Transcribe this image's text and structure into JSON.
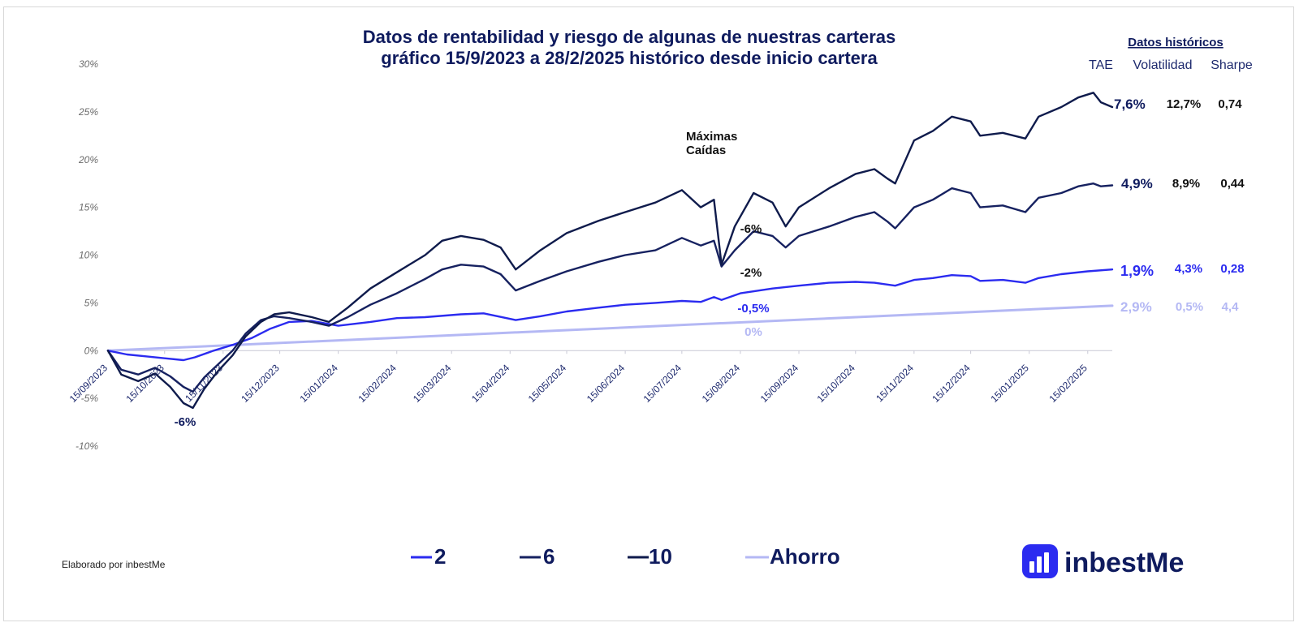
{
  "chart_data": {
    "type": "line",
    "title": [
      "Datos de rentabilidad y riesgo de algunas de nuestras carteras",
      "gráfico 15/9/2023 a 28/2/2025 histórico desde inicio cartera"
    ],
    "xlabel": "",
    "ylabel": "",
    "x_ticks": [
      "15/09/2023",
      "15/10/2023",
      "15/11/2023",
      "15/12/2023",
      "15/01/2024",
      "15/02/2024",
      "15/03/2024",
      "15/04/2024",
      "15/05/2024",
      "15/06/2024",
      "15/07/2024",
      "15/08/2024",
      "15/09/2024",
      "15/10/2024",
      "15/11/2024",
      "15/12/2024",
      "15/01/2025",
      "15/02/2025"
    ],
    "x_range": [
      "2023-09-15",
      "2025-02-28"
    ],
    "y_ticks": [
      "30%",
      "25%",
      "20%",
      "15%",
      "10%",
      "5%",
      "0%",
      "-5%",
      "-10%"
    ],
    "ylim": [
      -10,
      30
    ],
    "series": [
      {
        "name": "10",
        "color": "#0f1b4c",
        "points": [
          [
            "2023-09-15",
            0
          ],
          [
            "2023-09-22",
            -2.5
          ],
          [
            "2023-10-01",
            -3.2
          ],
          [
            "2023-10-10",
            -2.4
          ],
          [
            "2023-10-18",
            -3.8
          ],
          [
            "2023-10-25",
            -5.5
          ],
          [
            "2023-10-30",
            -6
          ],
          [
            "2023-11-05",
            -4
          ],
          [
            "2023-11-12",
            -2.2
          ],
          [
            "2023-11-20",
            -0.5
          ],
          [
            "2023-11-27",
            1.5
          ],
          [
            "2023-12-05",
            3
          ],
          [
            "2023-12-12",
            3.8
          ],
          [
            "2023-12-20",
            4
          ],
          [
            "2024-01-01",
            3.5
          ],
          [
            "2024-01-10",
            3
          ],
          [
            "2024-01-20",
            4.5
          ],
          [
            "2024-02-01",
            6.5
          ],
          [
            "2024-02-15",
            8.2
          ],
          [
            "2024-03-01",
            10
          ],
          [
            "2024-03-10",
            11.5
          ],
          [
            "2024-03-20",
            12
          ],
          [
            "2024-04-01",
            11.6
          ],
          [
            "2024-04-10",
            10.8
          ],
          [
            "2024-04-18",
            8.5
          ],
          [
            "2024-05-01",
            10.5
          ],
          [
            "2024-05-15",
            12.3
          ],
          [
            "2024-06-01",
            13.6
          ],
          [
            "2024-06-15",
            14.5
          ],
          [
            "2024-07-01",
            15.5
          ],
          [
            "2024-07-15",
            16.8
          ],
          [
            "2024-07-25",
            15
          ],
          [
            "2024-08-01",
            15.8
          ],
          [
            "2024-08-05",
            9
          ],
          [
            "2024-08-12",
            13
          ],
          [
            "2024-08-22",
            16.5
          ],
          [
            "2024-09-01",
            15.5
          ],
          [
            "2024-09-08",
            13
          ],
          [
            "2024-09-15",
            15
          ],
          [
            "2024-10-01",
            17
          ],
          [
            "2024-10-15",
            18.5
          ],
          [
            "2024-10-25",
            19
          ],
          [
            "2024-11-01",
            18
          ],
          [
            "2024-11-05",
            17.5
          ],
          [
            "2024-11-15",
            22
          ],
          [
            "2024-11-25",
            23
          ],
          [
            "2024-12-05",
            24.5
          ],
          [
            "2024-12-15",
            24
          ],
          [
            "2024-12-20",
            22.5
          ],
          [
            "2025-01-01",
            22.8
          ],
          [
            "2025-01-13",
            22.2
          ],
          [
            "2025-01-20",
            24.5
          ],
          [
            "2025-02-01",
            25.5
          ],
          [
            "2025-02-10",
            26.5
          ],
          [
            "2025-02-18",
            27
          ],
          [
            "2025-02-22",
            26
          ],
          [
            "2025-02-28",
            25.5
          ]
        ],
        "stats": {
          "tae": "7,6%",
          "volatilidad": "12,7%",
          "sharpe": "0,74"
        }
      },
      {
        "name": "6",
        "color": "#162160",
        "points": [
          [
            "2023-09-15",
            0
          ],
          [
            "2023-09-22",
            -2
          ],
          [
            "2023-10-01",
            -2.5
          ],
          [
            "2023-10-10",
            -1.8
          ],
          [
            "2023-10-18",
            -2.7
          ],
          [
            "2023-10-25",
            -3.8
          ],
          [
            "2023-10-30",
            -4.3
          ],
          [
            "2023-11-05",
            -2.8
          ],
          [
            "2023-11-12",
            -1.5
          ],
          [
            "2023-11-20",
            0
          ],
          [
            "2023-11-27",
            1.8
          ],
          [
            "2023-12-05",
            3.2
          ],
          [
            "2023-12-12",
            3.6
          ],
          [
            "2023-12-20",
            3.4
          ],
          [
            "2024-01-01",
            3
          ],
          [
            "2024-01-10",
            2.6
          ],
          [
            "2024-01-20",
            3.5
          ],
          [
            "2024-02-01",
            4.8
          ],
          [
            "2024-02-15",
            6
          ],
          [
            "2024-03-01",
            7.5
          ],
          [
            "2024-03-10",
            8.5
          ],
          [
            "2024-03-20",
            9
          ],
          [
            "2024-04-01",
            8.8
          ],
          [
            "2024-04-10",
            8
          ],
          [
            "2024-04-18",
            6.3
          ],
          [
            "2024-05-01",
            7.3
          ],
          [
            "2024-05-15",
            8.3
          ],
          [
            "2024-06-01",
            9.3
          ],
          [
            "2024-06-15",
            10
          ],
          [
            "2024-07-01",
            10.5
          ],
          [
            "2024-07-15",
            11.8
          ],
          [
            "2024-07-25",
            11
          ],
          [
            "2024-08-01",
            11.5
          ],
          [
            "2024-08-05",
            8.8
          ],
          [
            "2024-08-12",
            10.5
          ],
          [
            "2024-08-22",
            12.5
          ],
          [
            "2024-09-01",
            12
          ],
          [
            "2024-09-08",
            10.8
          ],
          [
            "2024-09-15",
            12
          ],
          [
            "2024-10-01",
            13
          ],
          [
            "2024-10-15",
            14
          ],
          [
            "2024-10-25",
            14.5
          ],
          [
            "2024-11-01",
            13.5
          ],
          [
            "2024-11-05",
            12.8
          ],
          [
            "2024-11-15",
            15
          ],
          [
            "2024-11-25",
            15.8
          ],
          [
            "2024-12-05",
            17
          ],
          [
            "2024-12-15",
            16.5
          ],
          [
            "2024-12-20",
            15
          ],
          [
            "2025-01-01",
            15.2
          ],
          [
            "2025-01-13",
            14.5
          ],
          [
            "2025-01-20",
            16
          ],
          [
            "2025-02-01",
            16.5
          ],
          [
            "2025-02-10",
            17.2
          ],
          [
            "2025-02-18",
            17.5
          ],
          [
            "2025-02-22",
            17.2
          ],
          [
            "2025-02-28",
            17.3
          ]
        ],
        "stats": {
          "tae": "4,9%",
          "volatilidad": "8,9%",
          "sharpe": "0,44"
        }
      },
      {
        "name": "2",
        "color": "#2b2bf0",
        "points": [
          [
            "2023-09-15",
            0
          ],
          [
            "2023-09-25",
            -0.4
          ],
          [
            "2023-10-05",
            -0.6
          ],
          [
            "2023-10-15",
            -0.8
          ],
          [
            "2023-10-25",
            -1
          ],
          [
            "2023-10-31",
            -0.7
          ],
          [
            "2023-11-10",
            0
          ],
          [
            "2023-11-20",
            0.6
          ],
          [
            "2023-11-30",
            1.3
          ],
          [
            "2023-12-10",
            2.3
          ],
          [
            "2023-12-20",
            3
          ],
          [
            "2024-01-01",
            3.1
          ],
          [
            "2024-01-15",
            2.6
          ],
          [
            "2024-02-01",
            3
          ],
          [
            "2024-02-15",
            3.4
          ],
          [
            "2024-03-01",
            3.5
          ],
          [
            "2024-03-20",
            3.8
          ],
          [
            "2024-04-01",
            3.9
          ],
          [
            "2024-04-18",
            3.2
          ],
          [
            "2024-05-01",
            3.6
          ],
          [
            "2024-05-15",
            4.1
          ],
          [
            "2024-06-01",
            4.5
          ],
          [
            "2024-06-15",
            4.8
          ],
          [
            "2024-07-01",
            5
          ],
          [
            "2024-07-15",
            5.2
          ],
          [
            "2024-07-25",
            5.1
          ],
          [
            "2024-08-01",
            5.6
          ],
          [
            "2024-08-05",
            5.3
          ],
          [
            "2024-08-15",
            6
          ],
          [
            "2024-09-01",
            6.5
          ],
          [
            "2024-09-15",
            6.8
          ],
          [
            "2024-10-01",
            7.1
          ],
          [
            "2024-10-15",
            7.2
          ],
          [
            "2024-10-25",
            7.1
          ],
          [
            "2024-11-05",
            6.8
          ],
          [
            "2024-11-15",
            7.4
          ],
          [
            "2024-11-25",
            7.6
          ],
          [
            "2024-12-05",
            7.9
          ],
          [
            "2024-12-15",
            7.8
          ],
          [
            "2024-12-20",
            7.3
          ],
          [
            "2025-01-01",
            7.4
          ],
          [
            "2025-01-13",
            7.1
          ],
          [
            "2025-01-20",
            7.6
          ],
          [
            "2025-02-01",
            8
          ],
          [
            "2025-02-15",
            8.3
          ],
          [
            "2025-02-28",
            8.5
          ]
        ],
        "stats": {
          "tae": "1,9%",
          "volatilidad": "4,3%",
          "sharpe": "0,28"
        }
      },
      {
        "name": "Ahorro",
        "color": "#b4b8f4",
        "points": [
          [
            "2023-09-15",
            0
          ],
          [
            "2025-02-28",
            4.7
          ]
        ],
        "stats": {
          "tae": "2,9%",
          "volatilidad": "0,5%",
          "sharpe": "4,4"
        }
      }
    ],
    "annotations": [
      {
        "text": "Máximas",
        "color": "#111111"
      },
      {
        "text": "Caídas",
        "color": "#111111"
      },
      {
        "text": "-6%",
        "color": "#0f1b5e"
      },
      {
        "text": "-6%",
        "color": "#111111"
      },
      {
        "text": "-2%",
        "color": "#111111"
      },
      {
        "text": "-0,5%",
        "color": "#2b2bf0"
      },
      {
        "text": "0%",
        "color": "#b4b8f4"
      }
    ],
    "historical_header": "Datos históricos",
    "historical_columns": [
      "TAE",
      "Volatilidad",
      "Sharpe"
    ],
    "legend": [
      "2",
      "6",
      "10",
      "Ahorro"
    ],
    "legend_placement": "bottom-center",
    "grid": false
  },
  "footer": {
    "credit": "Elaborado por inbestMe"
  },
  "logo": {
    "text": "inbestMe",
    "color": "#2b2bf0",
    "icon": "bar-chart-icon"
  }
}
